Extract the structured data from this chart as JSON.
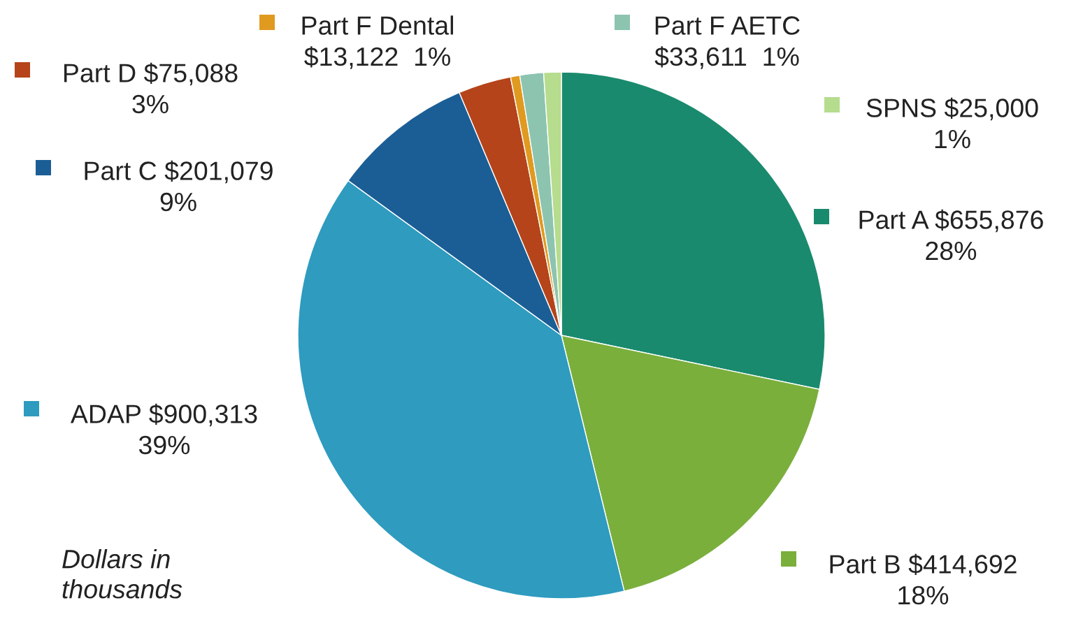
{
  "chart_data": {
    "type": "pie",
    "categories": [
      "Part A",
      "Part B",
      "ADAP",
      "Part C",
      "Part D",
      "Part F Dental",
      "Part F AETC",
      "SPNS"
    ],
    "values": [
      655876,
      414692,
      900313,
      201079,
      75088,
      13122,
      33611,
      25000
    ],
    "value_labels": [
      "$655,876\n28%",
      "$414,692\n18%",
      "$900,313\n39%",
      "$201,079\n9%",
      "$75,088\n3%",
      "$13,122  1%",
      "$33,611  1%",
      "$25,000\n1%"
    ],
    "colors": [
      "#1a8a6e",
      "#7aaf3c",
      "#2e9bbf",
      "#1b5e96",
      "#b5441a",
      "#e09a20",
      "#8cc4b0",
      "#b6dc8e"
    ],
    "annotations": [
      "Dollars in\nthousands"
    ],
    "legend": "top left"
  }
}
